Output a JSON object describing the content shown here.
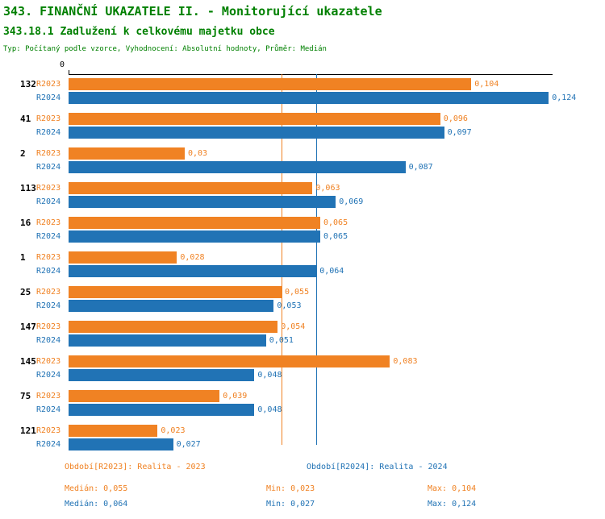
{
  "colors": {
    "green": "#008000",
    "orange": "#F08223",
    "blue": "#2173B5",
    "axis": "#000000"
  },
  "header": {
    "title": "343. FINANČNÍ UKAZATELE II. - Monitorující ukazatele",
    "subtitle": "343.18.1 Zadlužení k celkovému majetku obce",
    "meta": "Typ: Počítaný podle vzorce, Vyhodnocení: Absolutní hodnoty, Průměr: Medián"
  },
  "chart_data": {
    "type": "bar",
    "orientation": "horizontal",
    "title": "343.18.1 Zadlužení k celkovému majetku obce",
    "categories": [
      "132",
      "41",
      "2",
      "113",
      "16",
      "1",
      "25",
      "147",
      "145",
      "75",
      "121"
    ],
    "series": [
      {
        "name": "R2023",
        "color": "#F08223",
        "values": [
          0.104,
          0.096,
          0.03,
          0.063,
          0.065,
          0.028,
          0.055,
          0.054,
          0.083,
          0.039,
          0.023
        ],
        "labels": [
          "0,104",
          "0,096",
          "0,03",
          "0,063",
          "0,065",
          "0,028",
          "0,055",
          "0,054",
          "0,083",
          "0,039",
          "0,023"
        ]
      },
      {
        "name": "R2024",
        "color": "#2173B5",
        "values": [
          0.124,
          0.097,
          0.087,
          0.069,
          0.065,
          0.064,
          0.053,
          0.051,
          0.048,
          0.048,
          0.027
        ],
        "labels": [
          "0,124",
          "0,097",
          "0,087",
          "0,069",
          "0,065",
          "0,064",
          "0,053",
          "0,051",
          "0,048",
          "0,048",
          "0,027"
        ]
      }
    ],
    "xlim": [
      0,
      0.125
    ],
    "axis_zero_label": "0",
    "grid": false,
    "legend_position": "bottom",
    "reference_lines": [
      {
        "name": "median-2023",
        "value": 0.055,
        "color": "#F08223"
      },
      {
        "name": "median-2024",
        "value": 0.064,
        "color": "#2173B5"
      }
    ]
  },
  "legend": {
    "period_2023": "Období[R2023]: Realita - 2023",
    "period_2024": "Období[R2024]: Realita - 2024",
    "median_2023": "Medián: 0,055",
    "min_2023": "Min: 0,023",
    "max_2023": "Max: 0,104",
    "median_2024": "Medián: 0,064",
    "min_2024": "Min: 0,027",
    "max_2024": "Max: 0,124"
  }
}
